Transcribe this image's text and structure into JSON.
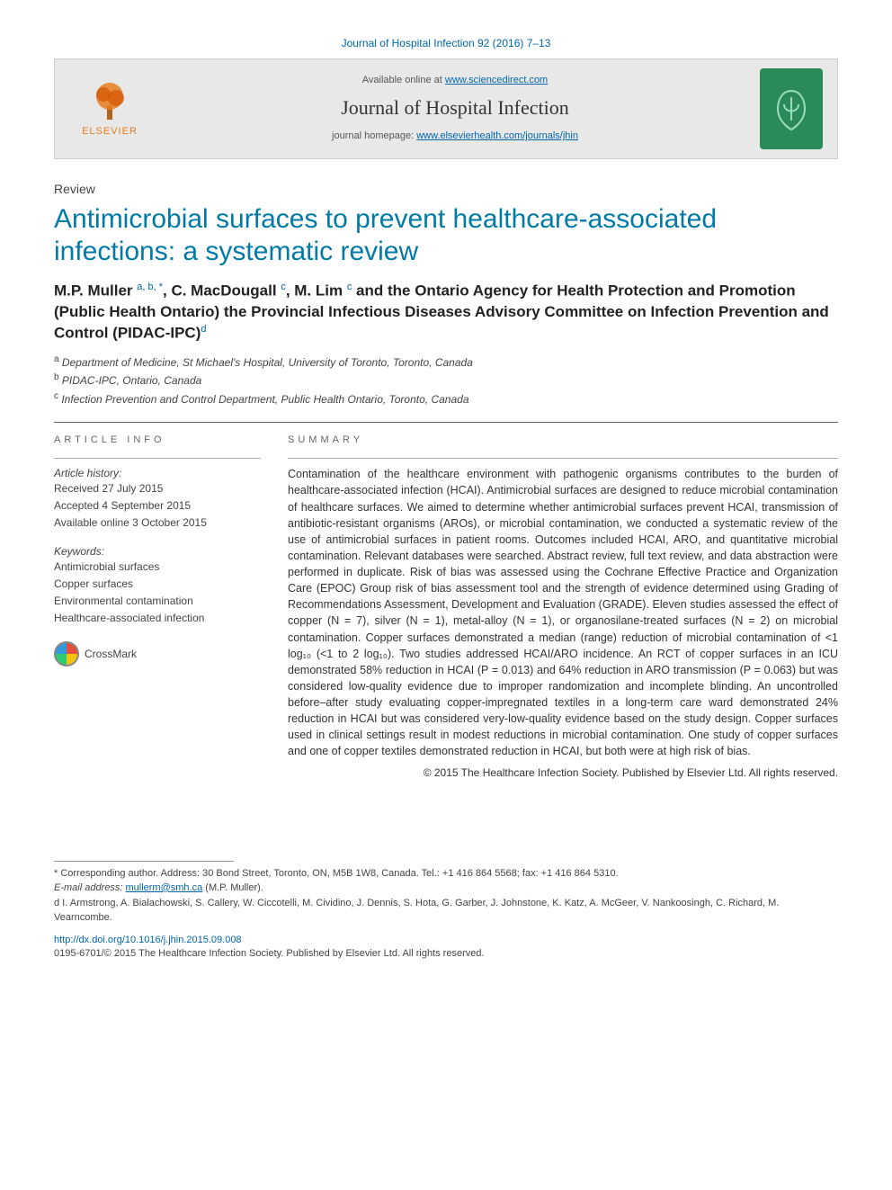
{
  "citation": "Journal of Hospital Infection 92 (2016) 7–13",
  "banner": {
    "available_prefix": "Available online at ",
    "available_link": "www.sciencedirect.com",
    "journal_name": "Journal of Hospital Infection",
    "homepage_prefix": "journal homepage: ",
    "homepage_link": "www.elsevierhealth.com/journals/jhin",
    "publisher": "ELSEVIER"
  },
  "article_type": "Review",
  "title": "Antimicrobial surfaces to prevent healthcare-associated infections: a systematic review",
  "authors_html": "M.P. Muller <sup>a, b, *</sup>, C. MacDougall <sup>c</sup>, M. Lim <sup>c</sup> and the Ontario Agency for Health Protection and Promotion (Public Health Ontario) the Provincial Infectious Diseases Advisory Committee on Infection Prevention and Control (PIDAC-IPC)<sup>d</sup>",
  "affiliations": [
    {
      "sup": "a",
      "text": "Department of Medicine, St Michael's Hospital, University of Toronto, Toronto, Canada"
    },
    {
      "sup": "b",
      "text": "PIDAC-IPC, Ontario, Canada"
    },
    {
      "sup": "c",
      "text": "Infection Prevention and Control Department, Public Health Ontario, Toronto, Canada"
    }
  ],
  "article_info": {
    "heading": "ARTICLE INFO",
    "history_label": "Article history:",
    "received": "Received 27 July 2015",
    "accepted": "Accepted 4 September 2015",
    "online": "Available online 3 October 2015",
    "keywords_label": "Keywords:",
    "keywords": [
      "Antimicrobial surfaces",
      "Copper surfaces",
      "Environmental contamination",
      "Healthcare-associated infection"
    ],
    "crossmark": "CrossMark"
  },
  "summary": {
    "heading": "SUMMARY",
    "body": "Contamination of the healthcare environment with pathogenic organisms contributes to the burden of healthcare-associated infection (HCAI). Antimicrobial surfaces are designed to reduce microbial contamination of healthcare surfaces. We aimed to determine whether antimicrobial surfaces prevent HCAI, transmission of antibiotic-resistant organisms (AROs), or microbial contamination, we conducted a systematic review of the use of antimicrobial surfaces in patient rooms. Outcomes included HCAI, ARO, and quantitative microbial contamination. Relevant databases were searched. Abstract review, full text review, and data abstraction were performed in duplicate. Risk of bias was assessed using the Cochrane Effective Practice and Organization Care (EPOC) Group risk of bias assessment tool and the strength of evidence determined using Grading of Recommendations Assessment, Development and Evaluation (GRADE). Eleven studies assessed the effect of copper (N = 7), silver (N = 1), metal-alloy (N = 1), or organosilane-treated surfaces (N = 2) on microbial contamination. Copper surfaces demonstrated a median (range) reduction of microbial contamination of <1 log₁₀ (<1 to 2 log₁₀). Two studies addressed HCAI/ARO incidence. An RCT of copper surfaces in an ICU demonstrated 58% reduction in HCAI (P = 0.013) and 64% reduction in ARO transmission (P = 0.063) but was considered low-quality evidence due to improper randomization and incomplete blinding. An uncontrolled before–after study evaluating copper-impregnated textiles in a long-term care ward demonstrated 24% reduction in HCAI but was considered very-low-quality evidence based on the study design. Copper surfaces used in clinical settings result in modest reductions in microbial contamination. One study of copper surfaces and one of copper textiles demonstrated reduction in HCAI, but both were at high risk of bias.",
    "copyright": "© 2015 The Healthcare Infection Society. Published by Elsevier Ltd. All rights reserved."
  },
  "footer": {
    "corresponding": "* Corresponding author. Address: 30 Bond Street, Toronto, ON, M5B 1W8, Canada. Tel.: +1 416 864 5568; fax: +1 416 864 5310.",
    "email_label": "E-mail address: ",
    "email": "mullerm@smh.ca",
    "email_suffix": " (M.P. Muller).",
    "note_d": "d  I. Armstrong, A. Bialachowski, S. Callery, W. Ciccotelli, M. Cividino, J. Dennis, S. Hota, G. Garber, J. Johnstone, K. Katz, A. McGeer, V. Nankoosingh, C. Richard, M. Vearncombe.",
    "doi": "http://dx.doi.org/10.1016/j.jhin.2015.09.008",
    "issn": "0195-6701/© 2015 The Healthcare Infection Society. Published by Elsevier Ltd. All rights reserved."
  },
  "colors": {
    "link": "#0066aa",
    "title": "#007aa6",
    "banner_bg": "#e8e8e8",
    "logo_bg": "#2a8a5a",
    "publisher": "#e67e22"
  }
}
